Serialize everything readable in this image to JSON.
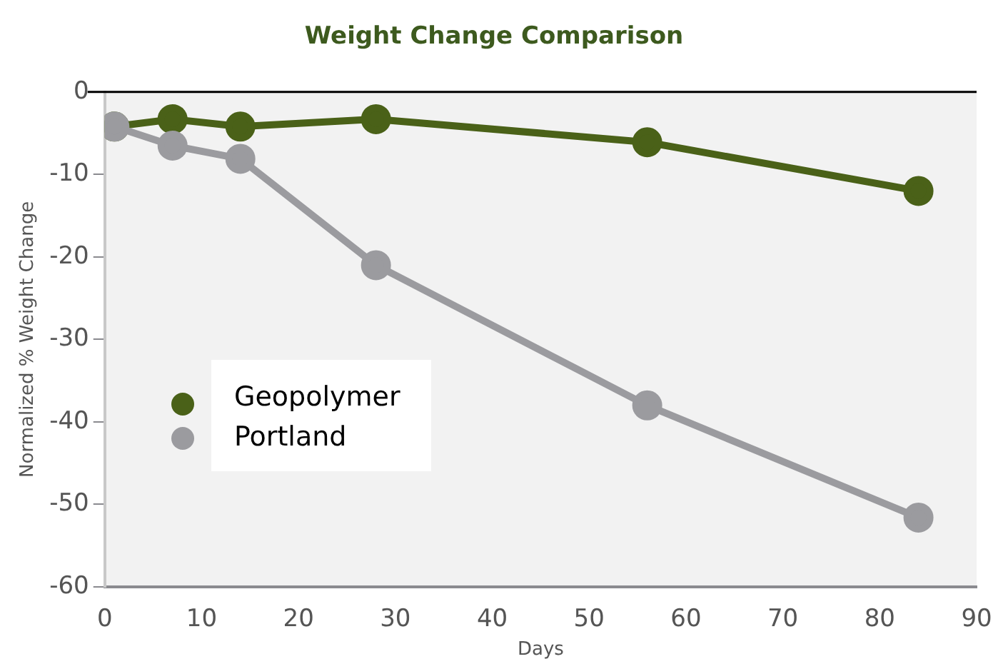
{
  "chart_data": {
    "type": "line",
    "title": "Weight Change Comparison",
    "xlabel": "Days",
    "ylabel": "Normalized % Weight Change",
    "x": [
      1,
      7,
      14,
      28,
      56,
      84
    ],
    "series": [
      {
        "name": "Geopolymer",
        "color": "#4a6118",
        "values": [
          -4.2,
          -3.3,
          -4.2,
          -3.3,
          -6.1,
          -12
        ]
      },
      {
        "name": "Portland",
        "color": "#9b9b9f",
        "values": [
          -4.2,
          -6.5,
          -8.1,
          -21,
          -38,
          -51.6
        ]
      }
    ],
    "xlim": [
      0,
      90
    ],
    "xticks": [
      0,
      10,
      20,
      30,
      40,
      50,
      60,
      70,
      80,
      90
    ],
    "ylim": [
      -60,
      0
    ],
    "yticks": [
      -60,
      -50,
      -40,
      -30,
      -20,
      -10,
      0
    ],
    "ref_lines": [
      {
        "axis": "y",
        "value": 0,
        "color": "#000000"
      }
    ],
    "grid": false,
    "legend": "left",
    "marker": "circle",
    "line_style": "solid"
  }
}
